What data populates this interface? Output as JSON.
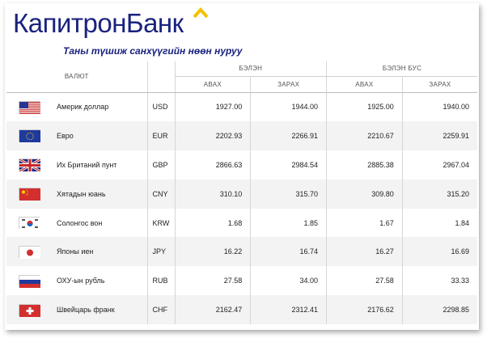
{
  "brand": {
    "name": "КапитронБанк",
    "tagline": "Таны түшиж санхүүгийн нөөн нуруу",
    "colors": {
      "primary": "#1a237e",
      "accent": "#f2c200"
    }
  },
  "table": {
    "headers": {
      "currency": "ВАЛЮТ",
      "cash": "БЭЛЭН",
      "noncash": "БЭЛЭН БУС",
      "buy": "АВАХ",
      "sell": "ЗАРАХ"
    },
    "rows": [
      {
        "flag": "us-flag-icon",
        "name": "Америк доллар",
        "code": "USD",
        "cash_buy": "1927.00",
        "cash_sell": "1944.00",
        "noncash_buy": "1925.00",
        "noncash_sell": "1940.00"
      },
      {
        "flag": "eu-flag-icon",
        "name": "Евро",
        "code": "EUR",
        "cash_buy": "2202.93",
        "cash_sell": "2266.91",
        "noncash_buy": "2210.67",
        "noncash_sell": "2259.91"
      },
      {
        "flag": "gb-flag-icon",
        "name": "Их Британий пунт",
        "code": "GBP",
        "cash_buy": "2866.63",
        "cash_sell": "2984.54",
        "noncash_buy": "2885.38",
        "noncash_sell": "2967.04"
      },
      {
        "flag": "cn-flag-icon",
        "name": "Хятадын юань",
        "code": "CNY",
        "cash_buy": "310.10",
        "cash_sell": "315.70",
        "noncash_buy": "309.80",
        "noncash_sell": "315.20"
      },
      {
        "flag": "kr-flag-icon",
        "name": "Солонгос вон",
        "code": "KRW",
        "cash_buy": "1.68",
        "cash_sell": "1.85",
        "noncash_buy": "1.67",
        "noncash_sell": "1.84"
      },
      {
        "flag": "jp-flag-icon",
        "name": "Японы иен",
        "code": "JPY",
        "cash_buy": "16.22",
        "cash_sell": "16.74",
        "noncash_buy": "16.27",
        "noncash_sell": "16.69"
      },
      {
        "flag": "ru-flag-icon",
        "name": "ОХУ-ын рубль",
        "code": "RUB",
        "cash_buy": "27.58",
        "cash_sell": "34.00",
        "noncash_buy": "27.58",
        "noncash_sell": "33.33"
      },
      {
        "flag": "ch-flag-icon",
        "name": "Швейцарь франк",
        "code": "CHF",
        "cash_buy": "2162.47",
        "cash_sell": "2312.41",
        "noncash_buy": "2176.62",
        "noncash_sell": "2298.85"
      }
    ]
  }
}
